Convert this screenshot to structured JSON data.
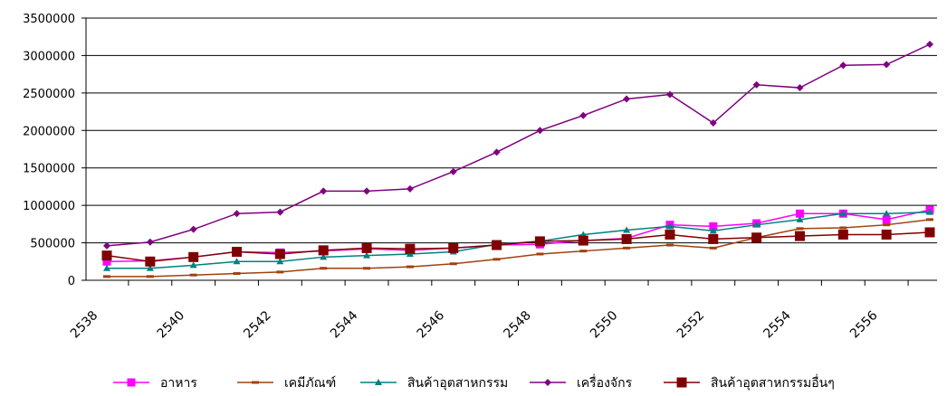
{
  "chart_data": {
    "type": "line",
    "title": "",
    "xlabel": "",
    "ylabel": "",
    "ylim": [
      0,
      3500000
    ],
    "yticks": [
      0,
      500000,
      1000000,
      1500000,
      2000000,
      2500000,
      3000000,
      3500000
    ],
    "ytick_labels": [
      "0",
      "500000",
      "1000000",
      "1500000",
      "2000000",
      "2500000",
      "3000000",
      "3500000"
    ],
    "xticks": [
      2538,
      2540,
      2542,
      2544,
      2546,
      2548,
      2550,
      2552,
      2554,
      2556
    ],
    "xtick_labels": [
      "2538",
      "2540",
      "2542",
      "2544",
      "2546",
      "2548",
      "2550",
      "2552",
      "2554",
      "2556"
    ],
    "x": [
      2538,
      2539,
      2540,
      2541,
      2542,
      2543,
      2544,
      2545,
      2546,
      2547,
      2548,
      2549,
      2550,
      2551,
      2552,
      2553,
      2554,
      2555,
      2556,
      2557
    ],
    "grid": "horizontal",
    "legend_position": "bottom",
    "series": [
      {
        "name": "อาหาร",
        "color": "#ff00ff",
        "marker": "square",
        "values": [
          250000,
          260000,
          310000,
          380000,
          370000,
          390000,
          420000,
          400000,
          430000,
          470000,
          480000,
          530000,
          560000,
          740000,
          720000,
          760000,
          890000,
          890000,
          810000,
          940000
        ]
      },
      {
        "name": "เคมีภัณฑ์",
        "color": "#a0410d",
        "marker": "dash",
        "values": [
          50000,
          50000,
          70000,
          90000,
          110000,
          160000,
          160000,
          180000,
          220000,
          280000,
          350000,
          390000,
          430000,
          470000,
          430000,
          570000,
          690000,
          700000,
          740000,
          810000
        ]
      },
      {
        "name": "สินค้าอุตสาหกรรม",
        "color": "#008080",
        "marker": "triangle",
        "values": [
          160000,
          160000,
          200000,
          250000,
          250000,
          310000,
          330000,
          350000,
          380000,
          480000,
          520000,
          610000,
          670000,
          720000,
          660000,
          740000,
          810000,
          890000,
          890000,
          910000
        ]
      },
      {
        "name": "เครื่องจักร",
        "color": "#7f007f",
        "marker": "diamond",
        "values": [
          460000,
          510000,
          680000,
          890000,
          910000,
          1190000,
          1190000,
          1220000,
          1450000,
          1710000,
          2000000,
          2200000,
          2420000,
          2480000,
          2100000,
          2610000,
          2570000,
          2870000,
          2880000,
          3150000
        ]
      },
      {
        "name": "สินค้าอุตสาหกรรมอื่นๆ",
        "color": "#800000",
        "marker": "square",
        "values": [
          330000,
          250000,
          310000,
          380000,
          350000,
          400000,
          430000,
          420000,
          430000,
          470000,
          520000,
          530000,
          550000,
          610000,
          550000,
          570000,
          590000,
          610000,
          610000,
          640000
        ]
      }
    ]
  }
}
